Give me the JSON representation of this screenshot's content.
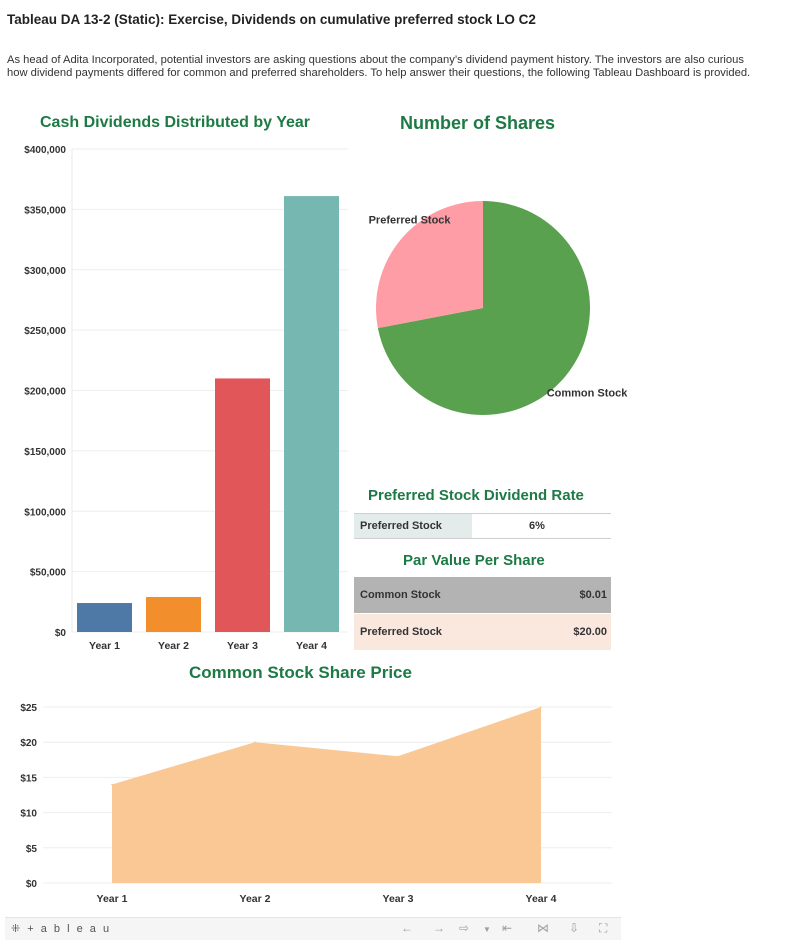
{
  "header": {
    "title": "Tableau DA 13-2 (Static): Exercise, Dividends on cumulative preferred stock LO C2",
    "description": "As head of Adita Incorporated, potential investors are asking questions about the company’s dividend payment history. The investors are also curious how dividend payments differed for common and preferred shareholders. To help answer their questions, the following Tableau Dashboard is provided."
  },
  "chart_data": [
    {
      "type": "bar",
      "title": "Cash Dividends Distributed by Year",
      "categories": [
        "Year 1",
        "Year 2",
        "Year 3",
        "Year 4"
      ],
      "values": [
        24000,
        29000,
        210000,
        361000
      ],
      "colors": [
        "#4e79a7",
        "#f28e2b",
        "#e15759",
        "#76b7b2"
      ],
      "ylim": [
        0,
        400000
      ],
      "yticks": [
        0,
        50000,
        100000,
        150000,
        200000,
        250000,
        300000,
        350000,
        400000
      ],
      "ytick_labels": [
        "$0",
        "$50,000",
        "$100,000",
        "$150,000",
        "$200,000",
        "$250,000",
        "$300,000",
        "$350,000",
        "$400,000"
      ],
      "xlabel": "",
      "ylabel": "",
      "grid": true
    },
    {
      "type": "pie",
      "title": "Number of Shares",
      "labels": [
        "Common Stock",
        "Preferred Stock"
      ],
      "values": [
        72,
        28
      ],
      "colors": [
        "#59a14f",
        "#ff9da7"
      ]
    },
    {
      "type": "area",
      "title": "Common Stock Share Price",
      "categories": [
        "Year 1",
        "Year 2",
        "Year 3",
        "Year 4"
      ],
      "values": [
        14,
        20,
        18,
        25
      ],
      "color": "#f9c894",
      "ylim": [
        0,
        25
      ],
      "yticks": [
        0,
        5,
        10,
        15,
        20,
        25
      ],
      "ytick_labels": [
        "$0",
        "$5",
        "$10",
        "$15",
        "$20",
        "$25"
      ],
      "xlabel": "",
      "ylabel": "",
      "grid": true
    },
    {
      "type": "table",
      "title": "Preferred Stock Dividend Rate",
      "rows": [
        {
          "label": "Preferred Stock",
          "value": "6%"
        }
      ]
    },
    {
      "type": "table",
      "title": "Par Value Per Share",
      "rows": [
        {
          "label": "Common Stock",
          "value": "$0.01",
          "color": "#b3b3b3"
        },
        {
          "label": "Preferred Stock",
          "value": "$20.00",
          "color": "#fae8df"
        }
      ]
    }
  ],
  "toolbar": {
    "logo": "+ a b l e a u",
    "icons": [
      "undo-icon",
      "redo-icon",
      "revert-icon",
      "pause-icon",
      "share-icon",
      "download-icon",
      "fullscreen-icon"
    ]
  }
}
